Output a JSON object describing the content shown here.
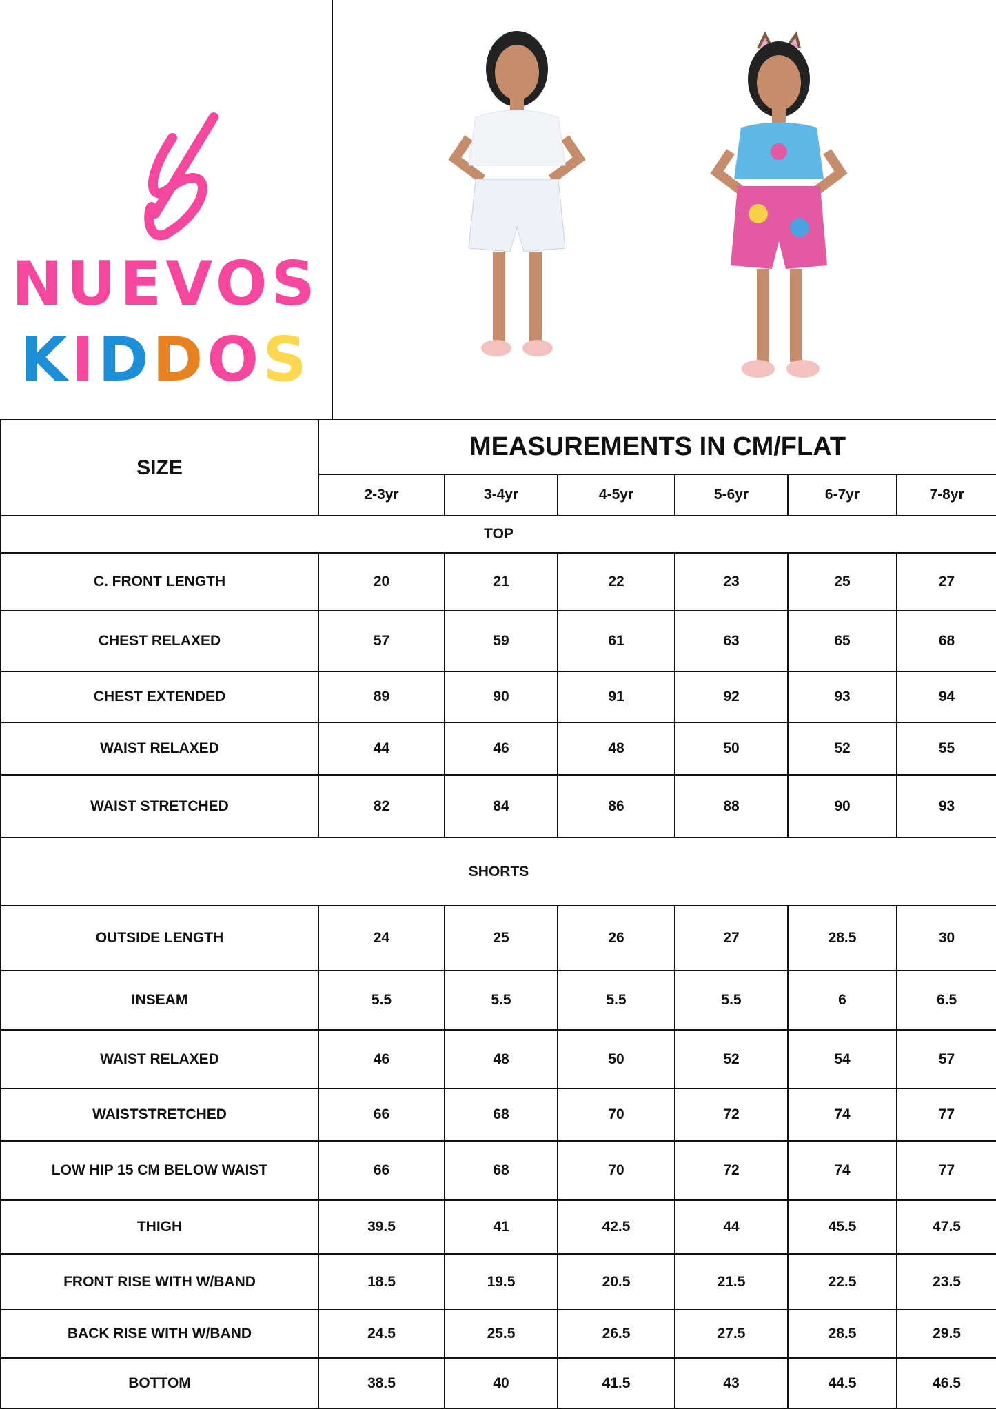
{
  "brand": {
    "logo_line1": "NUEVOS",
    "logo_line2": [
      "K",
      "I",
      "D",
      "D",
      "O",
      "S"
    ],
    "logo_colors": {
      "pink": "#f4479d",
      "blue": "#1c8fd8",
      "orange": "#e8811f",
      "yellow": "#fbd84f"
    }
  },
  "table": {
    "size_label": "SIZE",
    "title": "MEASUREMENTS IN CM/FLAT",
    "sizes": [
      "2-3yr",
      "3-4yr",
      "4-5yr",
      "5-6yr",
      "6-7yr",
      "7-8yr"
    ],
    "sections": [
      {
        "name": "TOP",
        "rows": [
          {
            "label": "C. FRONT LENGTH",
            "values": [
              "20",
              "21",
              "22",
              "23",
              "25",
              "27"
            ]
          },
          {
            "label": "CHEST RELAXED",
            "values": [
              "57",
              "59",
              "61",
              "63",
              "65",
              "68"
            ]
          },
          {
            "label": "CHEST EXTENDED",
            "values": [
              "89",
              "90",
              "91",
              "92",
              "93",
              "94"
            ]
          },
          {
            "label": "WAIST RELAXED",
            "values": [
              "44",
              "46",
              "48",
              "50",
              "52",
              "55"
            ]
          },
          {
            "label": "WAIST STRETCHED",
            "values": [
              "82",
              "84",
              "86",
              "88",
              "90",
              "93"
            ]
          }
        ]
      },
      {
        "name": "SHORTS",
        "rows": [
          {
            "label": "OUTSIDE LENGTH",
            "values": [
              "24",
              "25",
              "26",
              "27",
              "28.5",
              "30"
            ]
          },
          {
            "label": "INSEAM",
            "values": [
              "5.5",
              "5.5",
              "5.5",
              "5.5",
              "6",
              "6.5"
            ]
          },
          {
            "label": "WAIST RELAXED",
            "values": [
              "46",
              "48",
              "50",
              "52",
              "54",
              "57"
            ]
          },
          {
            "label": "WAISTSTRETCHED",
            "values": [
              "66",
              "68",
              "70",
              "72",
              "74",
              "77"
            ]
          },
          {
            "label": "LOW HIP 15 CM BELOW WAIST",
            "values": [
              "66",
              "68",
              "70",
              "72",
              "74",
              "77"
            ]
          },
          {
            "label": "THIGH",
            "values": [
              "39.5",
              "41",
              "42.5",
              "44",
              "45.5",
              "47.5"
            ]
          },
          {
            "label": "FRONT RISE WITH W/BAND",
            "values": [
              "18.5",
              "19.5",
              "20.5",
              "21.5",
              "22.5",
              "23.5"
            ]
          },
          {
            "label": "BACK RISE WITH W/BAND",
            "values": [
              "24.5",
              "25.5",
              "26.5",
              "27.5",
              "28.5",
              "29.5"
            ]
          },
          {
            "label": "BOTTOM",
            "values": [
              "38.5",
              "40",
              "41.5",
              "43",
              "44.5",
              "46.5"
            ]
          }
        ]
      }
    ]
  }
}
